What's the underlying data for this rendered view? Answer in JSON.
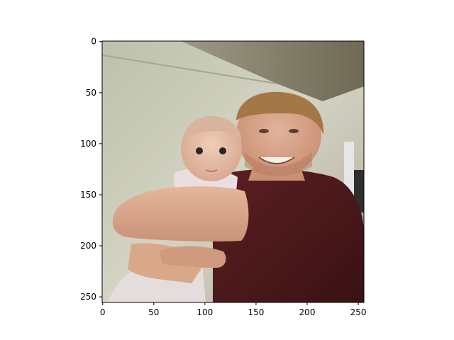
{
  "image": {
    "description_icon": "photo-icon",
    "colors": {
      "wall": "#c9c7b6",
      "ceiling": "#8a8470",
      "shirt": "#4d1a1c",
      "skin": "#d9a88a",
      "hair_man": "#a87a44",
      "baby_skin": "#e8c1ad",
      "baby_outfit": "#eadfe0",
      "door": "#e4e4e6"
    }
  },
  "axes": {
    "x_ticks": [
      "0",
      "50",
      "100",
      "150",
      "200",
      "250"
    ],
    "y_ticks": [
      "0",
      "50",
      "100",
      "150",
      "200",
      "250"
    ],
    "x_tick_values": [
      0,
      50,
      100,
      150,
      200,
      250
    ],
    "y_tick_values": [
      0,
      50,
      100,
      150,
      200,
      250
    ],
    "xlim": [
      -0.5,
      255.5
    ],
    "ylim": [
      255.5,
      -0.5
    ]
  }
}
